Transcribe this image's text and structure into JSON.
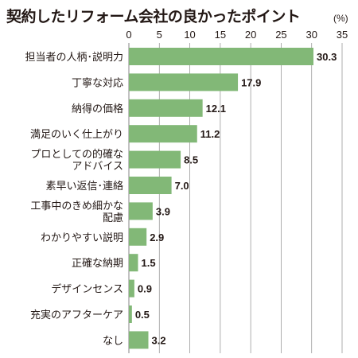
{
  "chart_data": {
    "type": "bar",
    "orientation": "horizontal",
    "title": "契約したリフォーム会社の良かったポイント",
    "unit": "(%)",
    "xlim": [
      0,
      35
    ],
    "xticks": [
      "0",
      "5",
      "10",
      "15",
      "20",
      "25",
      "30",
      "35"
    ],
    "grid": true,
    "categories": [
      [
        "担当者の人柄･説明力"
      ],
      [
        "丁寧な対応"
      ],
      [
        "納得の価格"
      ],
      [
        "満足のいく仕上がり"
      ],
      [
        "プロとしての的確な",
        "アドバイス"
      ],
      [
        "素早い返信･連絡"
      ],
      [
        "工事中のきめ細かな",
        "配慮"
      ],
      [
        "わかりやすい説明"
      ],
      [
        "正確な納期"
      ],
      [
        "デザインセンス"
      ],
      [
        "充実のアフターケア"
      ],
      [
        "なし"
      ]
    ],
    "values": [
      30.3,
      17.9,
      12.1,
      11.2,
      8.5,
      7.0,
      3.9,
      2.9,
      1.5,
      0.9,
      0.5,
      3.2
    ],
    "value_labels": [
      "30.3",
      "17.9",
      "12.1",
      "11.2",
      "8.5",
      "7.0",
      "3.9",
      "2.9",
      "1.5",
      "0.9",
      "0.5",
      "3.2"
    ],
    "colors": {
      "bar": "#82b877",
      "grid": "#9a9a9a",
      "text": "#231815"
    }
  }
}
